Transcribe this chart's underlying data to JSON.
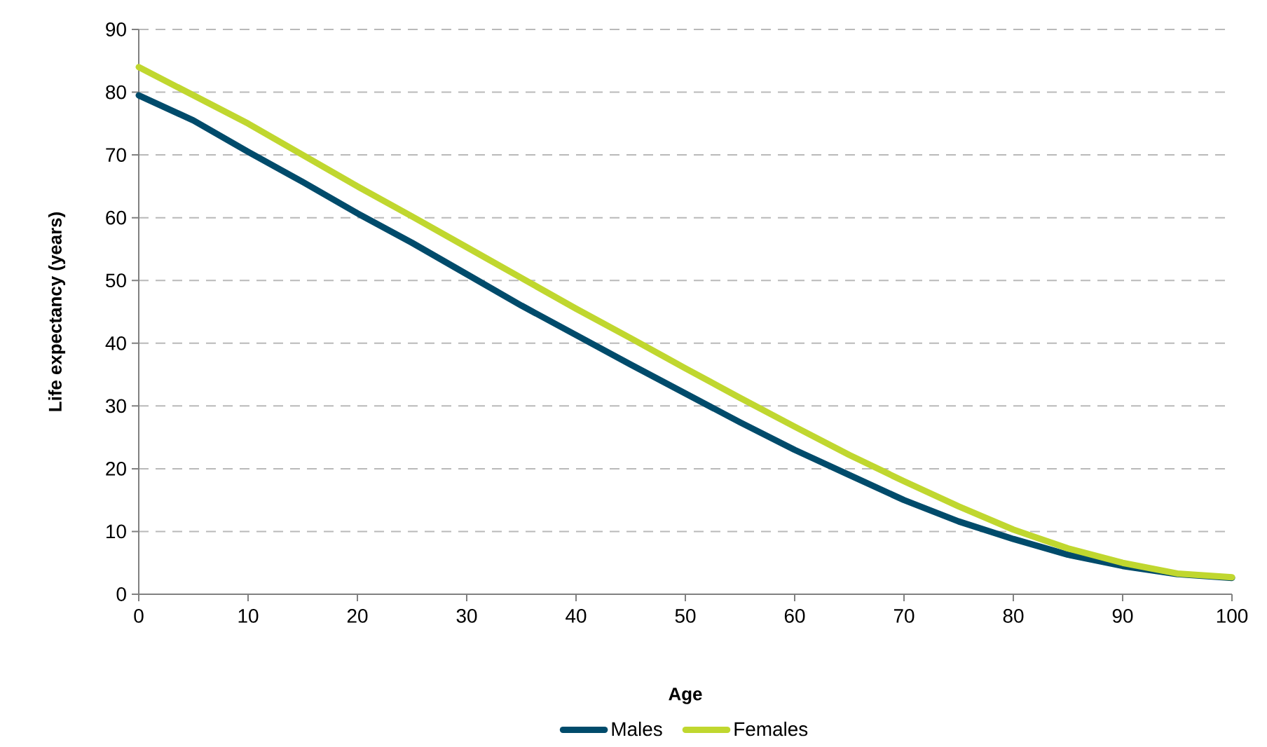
{
  "chart_data": {
    "type": "line",
    "xlabel": "Age",
    "ylabel": "Life expectancy (years)",
    "x": [
      0,
      5,
      10,
      15,
      20,
      25,
      30,
      35,
      40,
      45,
      50,
      55,
      60,
      65,
      70,
      75,
      80,
      85,
      90,
      95,
      100
    ],
    "series": [
      {
        "name": "Males",
        "color": "#004b6b",
        "values": [
          79.5,
          75.5,
          70.5,
          65.7,
          60.7,
          56,
          51,
          46,
          41.3,
          36.6,
          32,
          27.4,
          23,
          19,
          15,
          11.6,
          8.8,
          6.3,
          4.5,
          3.2,
          2.6
        ]
      },
      {
        "name": "Females",
        "color": "#c0d72f",
        "values": [
          84,
          79.5,
          75,
          70,
          65,
          60.2,
          55.3,
          50.4,
          45.5,
          40.8,
          36,
          31.3,
          26.7,
          22.2,
          18,
          14,
          10.3,
          7.3,
          5,
          3.3,
          2.7
        ]
      }
    ],
    "xlim": [
      0,
      100
    ],
    "ylim": [
      0,
      90
    ],
    "xticks": [
      0,
      10,
      20,
      30,
      40,
      50,
      60,
      70,
      80,
      90,
      100
    ],
    "yticks": [
      0,
      10,
      20,
      30,
      40,
      50,
      60,
      70,
      80,
      90
    ],
    "grid": "y",
    "legend": "bottom"
  }
}
